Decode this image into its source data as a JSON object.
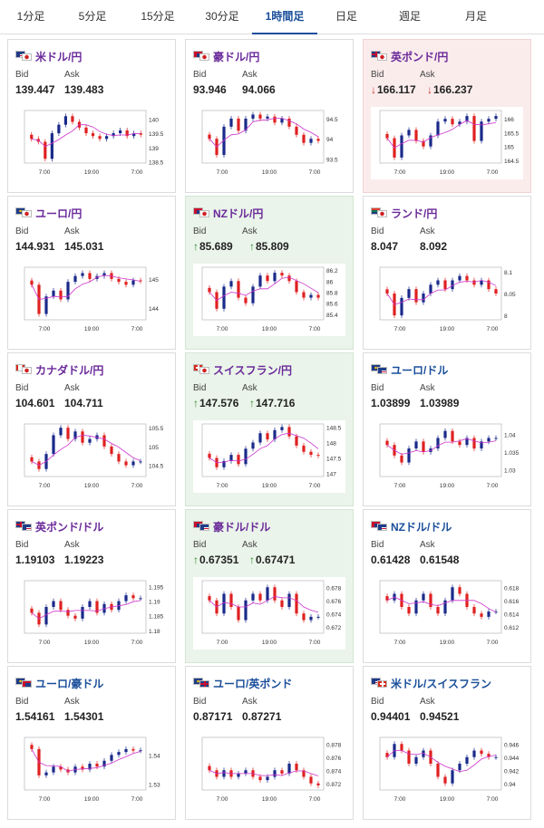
{
  "tabs": [
    {
      "label": "1分足"
    },
    {
      "label": "5分足"
    },
    {
      "label": "15分足"
    },
    {
      "label": "30分足"
    },
    {
      "label": "1時間足",
      "active": true
    },
    {
      "label": "日足"
    },
    {
      "label": "週足"
    },
    {
      "label": "月足"
    }
  ],
  "labels": {
    "bid": "Bid",
    "ask": "Ask"
  },
  "colors": {
    "pair_purple": "#6a2a9a",
    "pair_blue": "#1a4e9a",
    "up": "#2b8a2b",
    "down": "#c83030",
    "candle_up": "#1a2a8a",
    "candle_down": "#e02020",
    "ma": "#cc33cc"
  },
  "cards": [
    {
      "pair": "米ドル/円",
      "flags": [
        "us",
        "jp"
      ],
      "name_color": "purple",
      "trend": "none",
      "bid": "139.447",
      "ask": "139.483",
      "chart": {
        "yticks": [
          "140",
          "139.5",
          "139",
          "138.5"
        ],
        "ymin": 138.45,
        "ymax": 140.3,
        "xticks": [
          "7:00",
          "19:00",
          "7:00"
        ],
        "closes": [
          139.3,
          139.2,
          138.6,
          139.5,
          139.8,
          140.1,
          139.9,
          139.7,
          139.5,
          139.4,
          139.3,
          139.4,
          139.5,
          139.6,
          139.4,
          139.5,
          139.45
        ]
      }
    },
    {
      "pair": "豪ドル/円",
      "flags": [
        "au",
        "jp"
      ],
      "name_color": "purple",
      "trend": "none",
      "bid": "93.946",
      "ask": "94.066",
      "chart": {
        "yticks": [
          "94.5",
          "94",
          "93.5"
        ],
        "ymin": 93.4,
        "ymax": 94.7,
        "xticks": [
          "7:00",
          "19:00",
          "7:00"
        ],
        "closes": [
          94.0,
          93.6,
          94.3,
          94.5,
          94.2,
          94.5,
          94.6,
          94.5,
          94.55,
          94.4,
          94.5,
          94.3,
          94.1,
          93.9,
          94.0,
          93.95
        ]
      }
    },
    {
      "pair": "英ポンド/円",
      "flags": [
        "gb",
        "jp"
      ],
      "name_color": "purple",
      "trend": "down",
      "bid": "166.117",
      "ask": "166.237",
      "chart": {
        "yticks": [
          "166",
          "165.5",
          "165",
          "164.5"
        ],
        "ymin": 164.4,
        "ymax": 166.3,
        "xticks": [
          "7:00",
          "19:00",
          "7:00"
        ],
        "closes": [
          165.3,
          164.6,
          165.4,
          165.6,
          165.2,
          165.0,
          165.4,
          165.9,
          166.0,
          165.8,
          165.9,
          166.1,
          165.2,
          165.9,
          166.0,
          166.1
        ]
      }
    },
    {
      "pair": "ユーロ/円",
      "flags": [
        "eu",
        "jp"
      ],
      "name_color": "purple",
      "trend": "none",
      "bid": "144.931",
      "ask": "145.031",
      "chart": {
        "yticks": [
          "145",
          "144"
        ],
        "ymin": 143.6,
        "ymax": 145.4,
        "xticks": [
          "7:00",
          "19:00",
          "7:00"
        ],
        "closes": [
          144.8,
          143.8,
          144.4,
          144.6,
          144.3,
          144.9,
          145.1,
          145.2,
          145.0,
          145.1,
          145.2,
          145.0,
          144.9,
          144.8,
          144.95,
          144.93
        ]
      }
    },
    {
      "pair": "NZドル/円",
      "flags": [
        "nz",
        "jp"
      ],
      "name_color": "purple",
      "trend": "up",
      "bid": "85.689",
      "ask": "85.809",
      "chart": {
        "yticks": [
          "86.2",
          "86",
          "85.8",
          "85.6",
          "85.4"
        ],
        "ymin": 85.3,
        "ymax": 86.25,
        "xticks": [
          "7:00",
          "19:00",
          "7:00"
        ],
        "closes": [
          85.8,
          85.5,
          85.9,
          86.0,
          85.7,
          85.6,
          85.9,
          86.1,
          86.0,
          86.15,
          86.1,
          86.0,
          85.8,
          85.7,
          85.75,
          85.7
        ]
      }
    },
    {
      "pair": "ランド/円",
      "flags": [
        "za",
        "jp"
      ],
      "name_color": "purple",
      "trend": "none",
      "bid": "8.047",
      "ask": "8.092",
      "chart": {
        "yticks": [
          "8.1",
          "8.05",
          "8"
        ],
        "ymin": 7.99,
        "ymax": 8.11,
        "xticks": [
          "7:00",
          "19:00",
          "7:00"
        ],
        "closes": [
          8.05,
          8.0,
          8.04,
          8.06,
          8.03,
          8.05,
          8.07,
          8.08,
          8.06,
          8.08,
          8.09,
          8.08,
          8.07,
          8.08,
          8.06,
          8.05
        ]
      }
    },
    {
      "pair": "カナダドル/円",
      "flags": [
        "ca",
        "jp"
      ],
      "name_color": "purple",
      "trend": "none",
      "bid": "104.601",
      "ask": "104.711",
      "chart": {
        "yticks": [
          "105.5",
          "105",
          "104.5"
        ],
        "ymin": 104.2,
        "ymax": 105.6,
        "xticks": [
          "7:00",
          "19:00",
          "7:00"
        ],
        "closes": [
          104.6,
          104.4,
          104.8,
          105.3,
          105.5,
          105.2,
          105.4,
          105.1,
          105.2,
          105.3,
          105.0,
          104.8,
          104.6,
          104.5,
          104.6,
          104.6
        ]
      }
    },
    {
      "pair": "スイスフラン/円",
      "flags": [
        "ch",
        "jp"
      ],
      "name_color": "purple",
      "trend": "up",
      "bid": "147.576",
      "ask": "147.716",
      "chart": {
        "yticks": [
          "148.5",
          "148",
          "147.5",
          "147"
        ],
        "ymin": 146.9,
        "ymax": 148.6,
        "xticks": [
          "7:00",
          "19:00",
          "7:00"
        ],
        "closes": [
          147.5,
          147.2,
          147.4,
          147.6,
          147.3,
          147.8,
          148.0,
          148.3,
          148.1,
          148.4,
          148.5,
          148.2,
          147.9,
          147.7,
          147.6,
          147.58
        ]
      }
    },
    {
      "pair": "ユーロ/ドル",
      "flags": [
        "eu",
        "us"
      ],
      "name_color": "blue",
      "trend": "none",
      "bid": "1.03899",
      "ask": "1.03989",
      "chart": {
        "yticks": [
          "1.04",
          "1.035",
          "1.03"
        ],
        "ymin": 1.028,
        "ymax": 1.043,
        "xticks": [
          "7:00",
          "19:00",
          "7:00"
        ],
        "closes": [
          1.037,
          1.034,
          1.032,
          1.036,
          1.038,
          1.035,
          1.036,
          1.039,
          1.041,
          1.038,
          1.037,
          1.039,
          1.036,
          1.038,
          1.039,
          1.039
        ]
      }
    },
    {
      "pair": "英ポンド/ドル",
      "flags": [
        "gb",
        "us"
      ],
      "name_color": "purple",
      "trend": "none",
      "bid": "1.19103",
      "ask": "1.19223",
      "chart": {
        "yticks": [
          "1.195",
          "1.19",
          "1.185",
          "1.18"
        ],
        "ymin": 1.179,
        "ymax": 1.197,
        "xticks": [
          "7:00",
          "19:00",
          "7:00"
        ],
        "closes": [
          1.186,
          1.182,
          1.188,
          1.19,
          1.187,
          1.185,
          1.184,
          1.188,
          1.19,
          1.186,
          1.189,
          1.187,
          1.19,
          1.192,
          1.191,
          1.191
        ]
      }
    },
    {
      "pair": "豪ドル/ドル",
      "flags": [
        "au",
        "us"
      ],
      "name_color": "purple",
      "trend": "up",
      "bid": "0.67351",
      "ask": "0.67471",
      "chart": {
        "yticks": [
          "0.678",
          "0.676",
          "0.674",
          "0.672"
        ],
        "ymin": 0.671,
        "ymax": 0.679,
        "xticks": [
          "7:00",
          "19:00",
          "7:00"
        ],
        "closes": [
          0.676,
          0.674,
          0.677,
          0.675,
          0.673,
          0.676,
          0.677,
          0.676,
          0.678,
          0.676,
          0.675,
          0.677,
          0.674,
          0.673,
          0.6735,
          0.6735
        ]
      }
    },
    {
      "pair": "NZドル/ドル",
      "flags": [
        "nz",
        "us"
      ],
      "name_color": "blue",
      "trend": "none",
      "bid": "0.61428",
      "ask": "0.61548",
      "chart": {
        "yticks": [
          "0.618",
          "0.616",
          "0.614",
          "0.612"
        ],
        "ymin": 0.611,
        "ymax": 0.619,
        "xticks": [
          "7:00",
          "19:00",
          "7:00"
        ],
        "closes": [
          0.616,
          0.617,
          0.615,
          0.614,
          0.616,
          0.617,
          0.615,
          0.614,
          0.616,
          0.618,
          0.617,
          0.615,
          0.614,
          0.6135,
          0.6143,
          0.6143
        ]
      }
    },
    {
      "pair": "ユーロ/豪ドル",
      "flags": [
        "eu",
        "au"
      ],
      "name_color": "blue",
      "trend": "none",
      "bid": "1.54161",
      "ask": "1.54301",
      "chart": {
        "yticks": [
          "1.54",
          "1.53"
        ],
        "ymin": 1.528,
        "ymax": 1.546,
        "xticks": [
          "7:00",
          "19:00",
          "7:00"
        ],
        "closes": [
          1.542,
          1.533,
          1.534,
          1.536,
          1.535,
          1.534,
          1.536,
          1.535,
          1.537,
          1.536,
          1.538,
          1.54,
          1.541,
          1.542,
          1.5415,
          1.5416
        ]
      }
    },
    {
      "pair": "ユーロ/英ポンド",
      "flags": [
        "eu",
        "gb"
      ],
      "name_color": "blue",
      "trend": "none",
      "bid": "0.87171",
      "ask": "0.87271",
      "chart": {
        "yticks": [
          "0.878",
          "0.876",
          "0.874",
          "0.872"
        ],
        "ymin": 0.871,
        "ymax": 0.879,
        "xticks": [
          "7:00",
          "19:00",
          "7:00"
        ],
        "closes": [
          0.874,
          0.873,
          0.874,
          0.873,
          0.8735,
          0.874,
          0.873,
          0.8725,
          0.873,
          0.874,
          0.8735,
          0.875,
          0.874,
          0.873,
          0.872,
          0.8717
        ]
      }
    },
    {
      "pair": "米ドル/スイスフラン",
      "flags": [
        "us",
        "ch"
      ],
      "name_color": "blue",
      "trend": "none",
      "bid": "0.94401",
      "ask": "0.94521",
      "chart": {
        "yticks": [
          "0.946",
          "0.944",
          "0.942",
          "0.94"
        ],
        "ymin": 0.939,
        "ymax": 0.947,
        "xticks": [
          "7:00",
          "19:00",
          "7:00"
        ],
        "closes": [
          0.944,
          0.946,
          0.945,
          0.943,
          0.944,
          0.945,
          0.943,
          0.941,
          0.94,
          0.942,
          0.943,
          0.944,
          0.945,
          0.9445,
          0.944,
          0.944
        ]
      }
    }
  ]
}
